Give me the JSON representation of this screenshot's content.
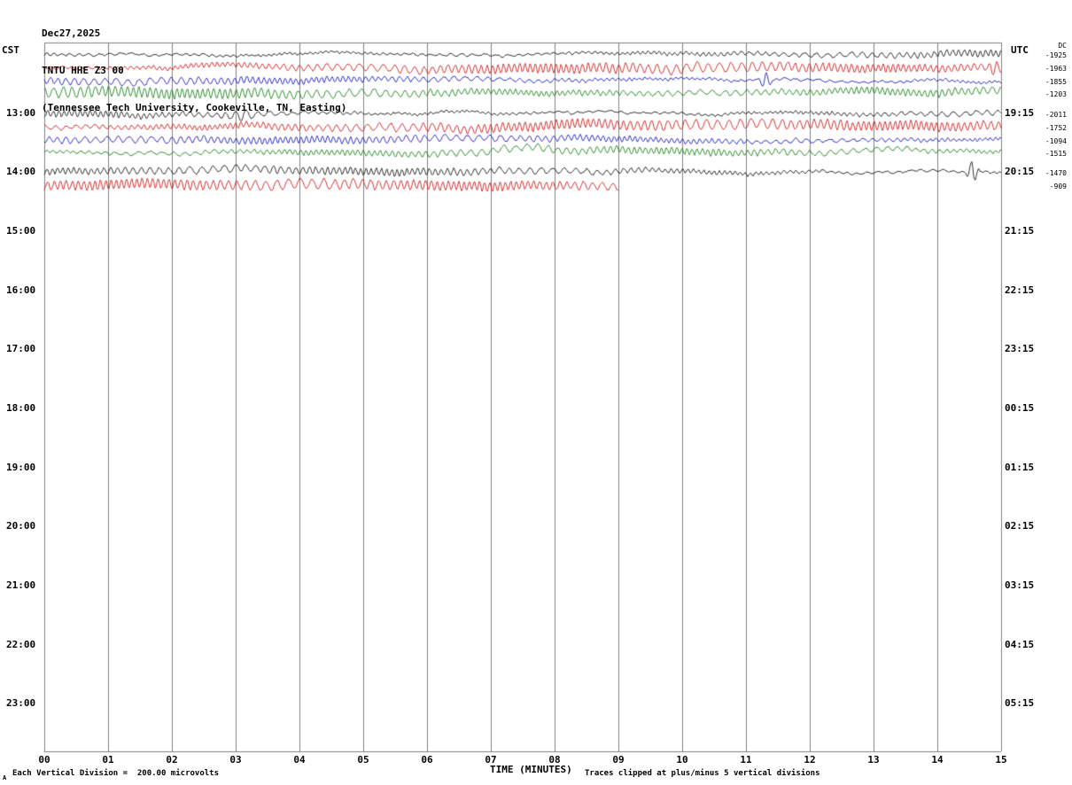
{
  "header": {
    "date": "Dec27,2025",
    "station": "TNTU HHE Z3 00",
    "location": "(Tennessee Tech University, Cookeville, TN, Easting)"
  },
  "axes": {
    "left_timezone": "CST",
    "right_timezone": "UTC",
    "left_times": [
      "13:00",
      "14:00",
      "15:00",
      "16:00",
      "17:00",
      "18:00",
      "19:00",
      "20:00",
      "21:00",
      "22:00",
      "23:00"
    ],
    "right_times": [
      "19:15",
      "20:15",
      "21:15",
      "22:15",
      "23:15",
      "00:15",
      "01:15",
      "02:15",
      "03:15",
      "04:15",
      "05:15"
    ],
    "x_ticks": [
      "00",
      "01",
      "02",
      "03",
      "04",
      "05",
      "06",
      "07",
      "08",
      "09",
      "10",
      "11",
      "12",
      "13",
      "14",
      "15"
    ],
    "x_label": "TIME (MINUTES)"
  },
  "right_margin": {
    "top_label": "DC",
    "values": [
      "-1925",
      "-1963",
      "-1855",
      "-1203",
      "-2011",
      "-1752",
      "-1094",
      "-1515",
      "-1470",
      "-909"
    ]
  },
  "footer": {
    "marker": "A",
    "left": "Each Vertical Division =  200.00 microvolts",
    "right": "Traces clipped at plus/minus 5 vertical divisions"
  },
  "chart_data": {
    "type": "line",
    "title": "TNTU HHE Z3 00 helicorder seismogram",
    "x_range_minutes": [
      0,
      15
    ],
    "rows_total": 12,
    "minutes_per_line": 15,
    "grid": true,
    "grid_color": "#808080",
    "trace_colors": [
      "#000000",
      "#cc0000",
      "#0000bb",
      "#007700"
    ],
    "rows": [
      {
        "traces": [
          {
            "color": 0,
            "end": 1
          },
          {
            "color": 1,
            "end": 1
          },
          {
            "color": 2,
            "end": 1
          },
          {
            "color": 3,
            "end": 1
          }
        ]
      },
      {
        "traces": [
          {
            "color": 0,
            "end": 1
          },
          {
            "color": 1,
            "end": 1
          },
          {
            "color": 2,
            "end": 1
          },
          {
            "color": 3,
            "end": 1
          }
        ]
      },
      {
        "traces": [
          {
            "color": 0,
            "end": 1
          },
          {
            "color": 1,
            "end": 0.6
          }
        ]
      }
    ],
    "events": [
      {
        "type": "burst",
        "row": 0,
        "trace": 2,
        "minute": 11.3,
        "amp": 9,
        "halfwidth": 9
      },
      {
        "type": "burst",
        "row": 0,
        "trace": 1,
        "minute": 14.9,
        "amp": 6,
        "halfwidth": 8
      },
      {
        "type": "burst",
        "row": 1,
        "trace": 0,
        "minute": 3.1,
        "amp": 4,
        "halfwidth": 30
      },
      {
        "type": "burst",
        "row": 2,
        "trace": 0,
        "minute": 14.55,
        "amp": 12,
        "halfwidth": 9
      },
      {
        "type": "drift",
        "row": 1,
        "trace": 3,
        "minute": 7.55,
        "dy": -7,
        "halfwidth": 55
      }
    ]
  }
}
